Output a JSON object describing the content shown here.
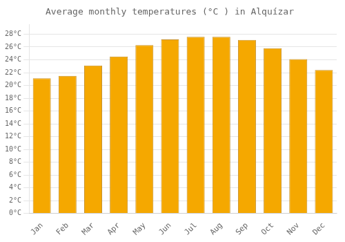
{
  "chart_data": {
    "type": "bar",
    "title": "Average monthly temperatures (°C ) in Alquí­zar",
    "categories": [
      "Jan",
      "Feb",
      "Mar",
      "Apr",
      "May",
      "Jun",
      "Jul",
      "Aug",
      "Sep",
      "Oct",
      "Nov",
      "Dec"
    ],
    "values": [
      21.1,
      21.5,
      23.1,
      24.5,
      26.3,
      27.2,
      27.6,
      27.6,
      27.1,
      25.8,
      24.1,
      22.4
    ],
    "color": "#F5A800",
    "ylim": [
      0,
      29.5
    ],
    "yticks": [
      {
        "value": 0,
        "label": "0°C"
      },
      {
        "value": 2,
        "label": "2°C"
      },
      {
        "value": 4,
        "label": "4°C"
      },
      {
        "value": 6,
        "label": "6°C"
      },
      {
        "value": 8,
        "label": "8°C"
      },
      {
        "value": 10,
        "label": "10°C"
      },
      {
        "value": 12,
        "label": "12°C"
      },
      {
        "value": 14,
        "label": "14°C"
      },
      {
        "value": 16,
        "label": "16°C"
      },
      {
        "value": 18,
        "label": "18°C"
      },
      {
        "value": 20,
        "label": "20°C"
      },
      {
        "value": 22,
        "label": "22°C"
      },
      {
        "value": 24,
        "label": "24°C"
      },
      {
        "value": 26,
        "label": "26°C"
      },
      {
        "value": 28,
        "label": "28°C"
      }
    ],
    "grid": true
  }
}
